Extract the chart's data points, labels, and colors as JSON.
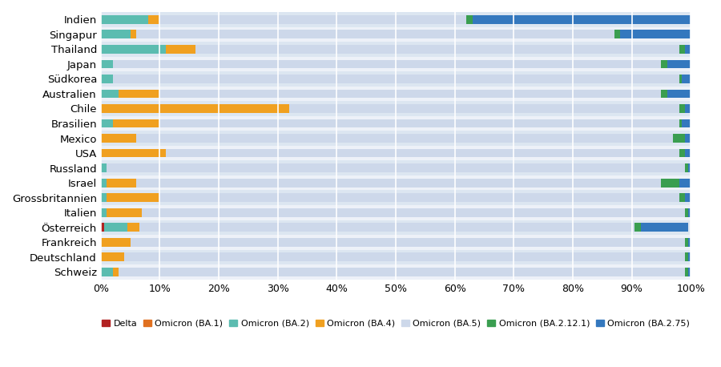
{
  "countries": [
    "Indien",
    "Singapur",
    "Thailand",
    "Japan",
    "Südkorea",
    "Australien",
    "Chile",
    "Brasilien",
    "Mexico",
    "USA",
    "Russland",
    "Israel",
    "Grossbritannien",
    "Italien",
    "Österreich",
    "Frankreich",
    "Deutschland",
    "Schweiz"
  ],
  "series": {
    "Delta": [
      0,
      0,
      0,
      0,
      0,
      0,
      0,
      0,
      0,
      0,
      0,
      0,
      0,
      0,
      0.5,
      0,
      0,
      0
    ],
    "Omicron (BA.1)": [
      0,
      0,
      0,
      0,
      0,
      0,
      0,
      0,
      0,
      0,
      0,
      0,
      0,
      0,
      0,
      0,
      0,
      0
    ],
    "Omicron (BA.2)": [
      8,
      5,
      11,
      2,
      2,
      3,
      0,
      2,
      0,
      0,
      1,
      1,
      1,
      1,
      4,
      0,
      0,
      2
    ],
    "Omicron (BA.4)": [
      2,
      1,
      5,
      0,
      0,
      7,
      32,
      8,
      6,
      11,
      0,
      5,
      9,
      6,
      2,
      5,
      4,
      1
    ],
    "Omicron (BA.5)": [
      52,
      81,
      82,
      93,
      96,
      85,
      66,
      88,
      91,
      87,
      98,
      89,
      88,
      92,
      84,
      94,
      95,
      96
    ],
    "Omicron (BA.2.12.1)": [
      1,
      1,
      1,
      1,
      0.5,
      1,
      1,
      0.5,
      2,
      1,
      0.5,
      3,
      1,
      0.5,
      1,
      0.5,
      0.5,
      0.5
    ],
    "Omicron (BA.2.75)": [
      37,
      12,
      1,
      4,
      1.5,
      4,
      1,
      1.5,
      1,
      1,
      0.5,
      2,
      1,
      0.5,
      8.0,
      0.5,
      0.5,
      0.5
    ]
  },
  "colors": {
    "Delta": "#b22222",
    "Omicron (BA.1)": "#e07020",
    "Omicron (BA.2)": "#5bbcb0",
    "Omicron (BA.4)": "#f0a020",
    "Omicron (BA.5)": "#cdd8ea",
    "Omicron (BA.2.12.1)": "#3a9e50",
    "Omicron (BA.2.75)": "#3478be"
  },
  "background_color": "#ffffff",
  "bar_bg_even": "#dce6f1",
  "bar_bg_odd": "#edf1f8",
  "xlim": [
    0,
    100
  ],
  "xticks": [
    0,
    10,
    20,
    30,
    40,
    50,
    60,
    70,
    80,
    90,
    100
  ],
  "xtick_labels": [
    "0%",
    "10%",
    "20%",
    "30%",
    "40%",
    "50%",
    "60%",
    "70%",
    "80%",
    "90%",
    "100%"
  ]
}
